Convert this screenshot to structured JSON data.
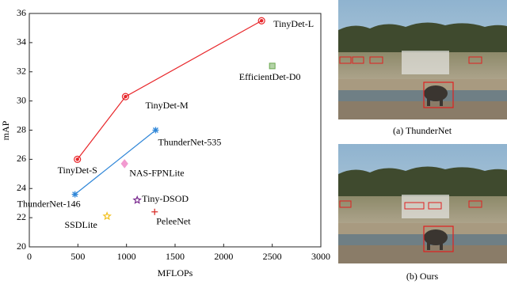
{
  "chart_data": {
    "type": "scatter",
    "x_label": "MFLOPs",
    "y_label": "mAP",
    "xlim": [
      0,
      3000
    ],
    "xticks": [
      0,
      500,
      1000,
      1500,
      2000,
      2500,
      3000
    ],
    "ylim": [
      20,
      36
    ],
    "yticks": [
      20,
      22,
      24,
      26,
      28,
      30,
      32,
      34,
      36
    ],
    "series": [
      {
        "color": "#e8262a",
        "marker": "ring",
        "line": true,
        "x": [
          495,
          990,
          2390
        ],
        "values": [
          26.0,
          30.3,
          35.5
        ],
        "labels": [
          "TinyDet-S",
          "TinyDet-M",
          "TinyDet-L"
        ]
      },
      {
        "color": "#2f86d8",
        "marker": "asterisk",
        "line": true,
        "x": [
          470,
          1300
        ],
        "values": [
          23.6,
          28.0
        ],
        "labels": [
          "ThunderNet-146",
          "ThunderNet-535"
        ]
      },
      {
        "color": "#6aa84f",
        "marker": "square",
        "line": false,
        "x": [
          2500
        ],
        "values": [
          32.4
        ],
        "labels": [
          "EfficientDet-D0"
        ]
      },
      {
        "color": "#f29ad0",
        "marker": "diamond",
        "line": false,
        "x": [
          980
        ],
        "values": [
          25.7
        ],
        "labels": [
          "NAS-FPNLite"
        ]
      },
      {
        "color": "#7a2b8f",
        "marker": "star",
        "line": false,
        "x": [
          1110
        ],
        "values": [
          23.2
        ],
        "labels": [
          "Tiny-DSOD"
        ]
      },
      {
        "color": "#d9302b",
        "marker": "plus",
        "line": false,
        "x": [
          1290
        ],
        "values": [
          22.4
        ],
        "labels": [
          "PeleeNet"
        ]
      },
      {
        "color": "#f2c01e",
        "marker": "star",
        "line": false,
        "x": [
          800
        ],
        "values": [
          22.1
        ],
        "labels": [
          "SSDLite"
        ]
      }
    ]
  },
  "panels": [
    {
      "caption": "(a) ThunderNet"
    },
    {
      "caption": "(b) Ours"
    }
  ]
}
